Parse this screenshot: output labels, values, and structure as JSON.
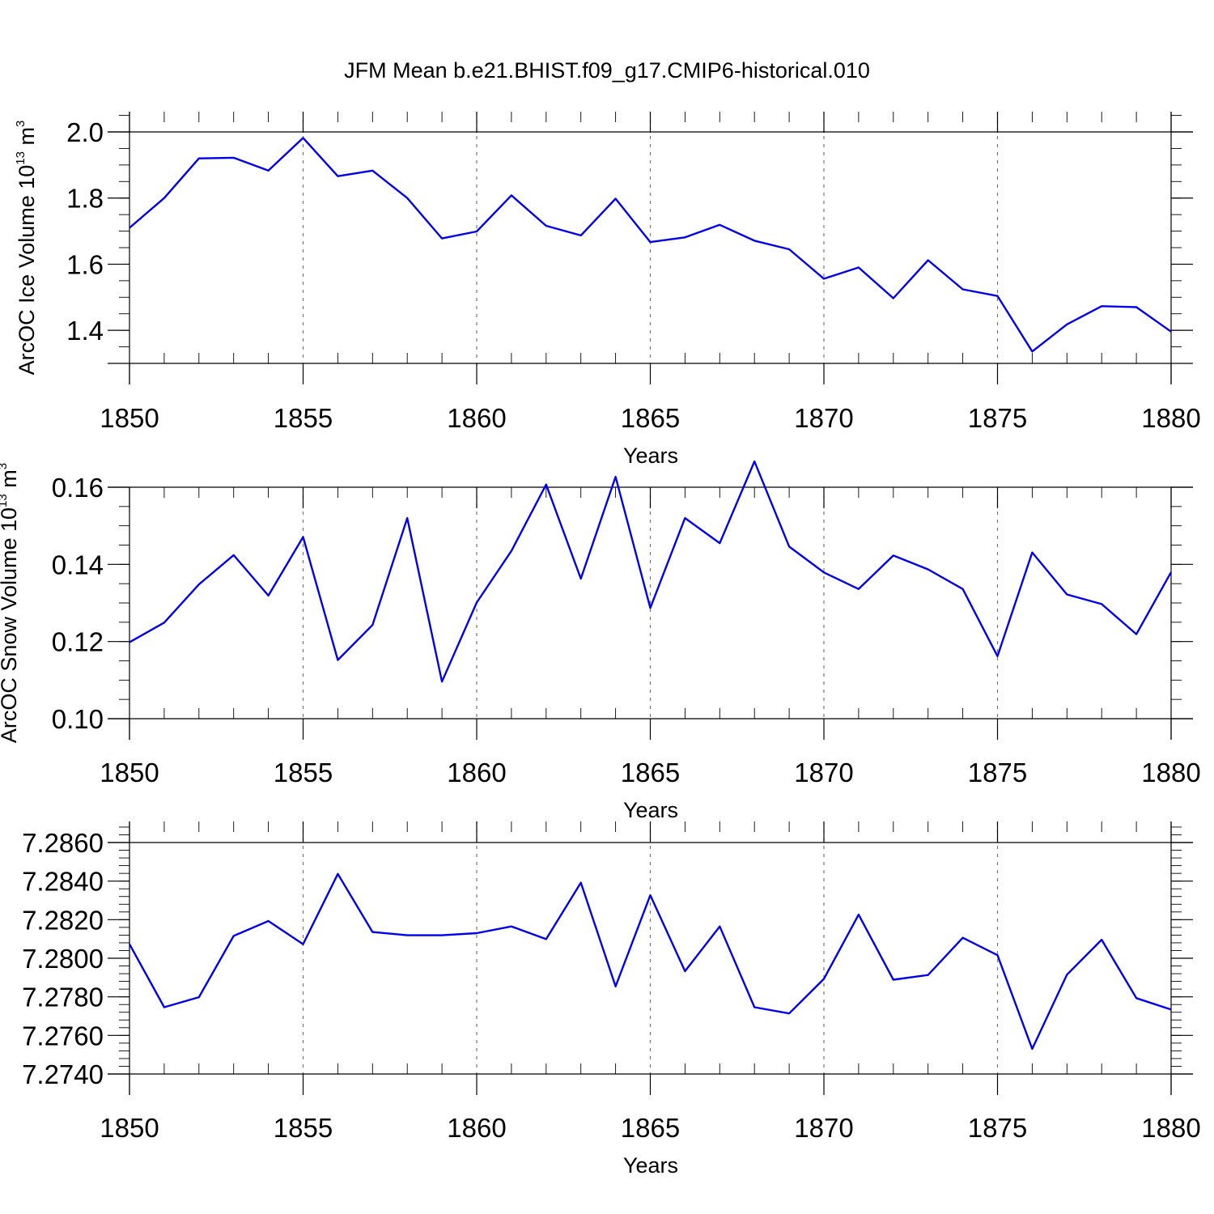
{
  "title": "JFM Mean b.e21.BHIST.f09_g17.CMIP6-historical.010",
  "line_color": "#0000ee",
  "chart_data": [
    {
      "type": "line",
      "name": "ice-volume",
      "xlabel": "Years",
      "ylabel_main": "ArcOC Ice Volume 10",
      "ylabel_exp": "13",
      "ylabel_unit": " m",
      "ylabel_unit_exp": "3",
      "xlim": [
        1850,
        1880
      ],
      "ylim": [
        1.3,
        2.1
      ],
      "x_ticks": [
        1850,
        1855,
        1860,
        1865,
        1870,
        1875,
        1880
      ],
      "x_tick_labels": [
        "1850",
        "1855",
        "1860",
        "1865",
        "1870",
        "1875",
        "1880"
      ],
      "y_ticks": [
        1.4,
        1.6,
        1.8,
        2.0
      ],
      "y_tick_labels": [
        "1.4",
        "1.6",
        "1.8",
        "2.0"
      ],
      "y_minor_step": 0.05,
      "grid": "vertical-dashed",
      "x": [
        1850,
        1851,
        1852,
        1853,
        1854,
        1855,
        1856,
        1857,
        1858,
        1859,
        1860,
        1861,
        1862,
        1863,
        1864,
        1865,
        1866,
        1867,
        1868,
        1869,
        1870,
        1871,
        1872,
        1873,
        1874,
        1875,
        1876,
        1877,
        1878,
        1879,
        1880
      ],
      "values": [
        1.71,
        1.8,
        1.92,
        1.922,
        1.883,
        1.982,
        1.866,
        1.883,
        1.8,
        1.678,
        1.699,
        1.808,
        1.716,
        1.687,
        1.798,
        1.667,
        1.681,
        1.719,
        1.671,
        1.645,
        1.556,
        1.59,
        1.497,
        1.612,
        1.524,
        1.504,
        1.336,
        1.418,
        1.473,
        1.47,
        1.396
      ]
    },
    {
      "type": "line",
      "name": "snow-volume",
      "xlabel": "Years",
      "ylabel_main": "ArcOC Snow Volume 10",
      "ylabel_exp": "13",
      "ylabel_unit": " m",
      "ylabel_unit_exp": "3",
      "xlim": [
        1850,
        1880
      ],
      "ylim": [
        0.1,
        0.17
      ],
      "x_ticks": [
        1850,
        1855,
        1860,
        1865,
        1870,
        1875,
        1880
      ],
      "x_tick_labels": [
        "1850",
        "1855",
        "1860",
        "1865",
        "1870",
        "1875",
        "1880"
      ],
      "y_ticks": [
        0.1,
        0.12,
        0.14,
        0.16
      ],
      "y_tick_labels": [
        "0.10",
        "0.12",
        "0.14",
        "0.16"
      ],
      "y_minor_step": 0.005,
      "grid": "vertical-dashed",
      "x": [
        1850,
        1851,
        1852,
        1853,
        1854,
        1855,
        1856,
        1857,
        1858,
        1859,
        1860,
        1861,
        1862,
        1863,
        1864,
        1865,
        1866,
        1867,
        1868,
        1869,
        1870,
        1871,
        1872,
        1873,
        1874,
        1875,
        1876,
        1877,
        1878,
        1879,
        1880
      ],
      "values": [
        0.1198,
        0.1249,
        0.1348,
        0.1424,
        0.1319,
        0.1471,
        0.1152,
        0.1243,
        0.152,
        0.1096,
        0.1301,
        0.1435,
        0.1607,
        0.1363,
        0.1627,
        0.1287,
        0.152,
        0.1455,
        0.1667,
        0.1446,
        0.1379,
        0.1336,
        0.1423,
        0.1387,
        0.1336,
        0.1162,
        0.1431,
        0.1322,
        0.1297,
        0.1219,
        0.138
      ]
    },
    {
      "type": "line",
      "name": "third-series",
      "xlabel": "Years",
      "xlim": [
        1850,
        1880
      ],
      "ylim": [
        7.274,
        7.286
      ],
      "x_ticks": [
        1850,
        1855,
        1860,
        1865,
        1870,
        1875,
        1880
      ],
      "x_tick_labels": [
        "1850",
        "1855",
        "1860",
        "1865",
        "1870",
        "1875",
        "1880"
      ],
      "y_ticks": [
        7.274,
        7.276,
        7.278,
        7.28,
        7.282,
        7.284,
        7.286
      ],
      "y_tick_labels": [
        "7.2740",
        "7.2760",
        "7.2780",
        "7.2800",
        "7.2820",
        "7.2840",
        "7.2860"
      ],
      "y_minor_step": 0.0004,
      "grid": "vertical-dashed",
      "x": [
        1850,
        1851,
        1852,
        1853,
        1854,
        1855,
        1856,
        1857,
        1858,
        1859,
        1860,
        1861,
        1862,
        1863,
        1864,
        1865,
        1866,
        1867,
        1868,
        1869,
        1870,
        1871,
        1872,
        1873,
        1874,
        1875,
        1876,
        1877,
        1878,
        1879,
        1880
      ],
      "values": [
        7.28073,
        7.27746,
        7.27798,
        7.28116,
        7.28193,
        7.28073,
        7.28437,
        7.28136,
        7.28119,
        7.28119,
        7.2813,
        7.28165,
        7.28099,
        7.28392,
        7.27854,
        7.28327,
        7.27933,
        7.28165,
        7.27746,
        7.27714,
        7.27893,
        7.28226,
        7.27889,
        7.27913,
        7.28106,
        7.28016,
        7.2753,
        7.27915,
        7.28096,
        7.27793,
        7.27734
      ]
    }
  ]
}
